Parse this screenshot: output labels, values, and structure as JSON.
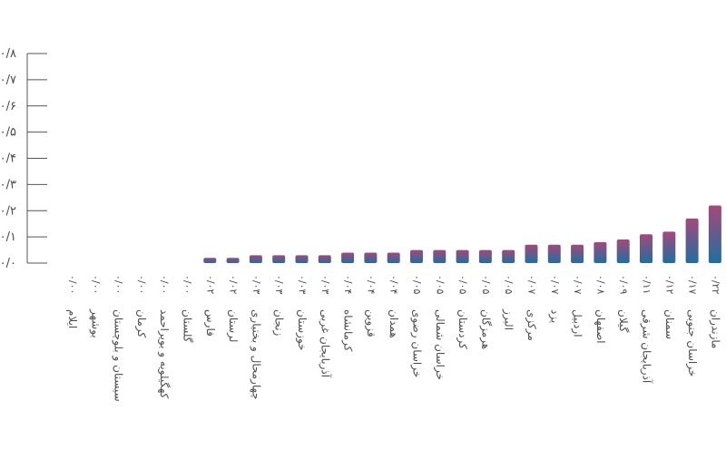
{
  "chart_data": {
    "type": "bar",
    "title": "",
    "xlabel": "",
    "ylabel": "",
    "ylim": [
      0,
      0.8
    ],
    "yticks": [
      "۰/۰",
      "۰/۱",
      "۰/۲",
      "۰/۳",
      "۰/۴",
      "۰/۵",
      "۰/۶",
      "۰/۷",
      "۰/۸"
    ],
    "grid": false,
    "colors": {
      "top": "#a4487a",
      "bottom": "#1f6fa0",
      "axis": "#555555",
      "text": "#4d4d4d"
    },
    "categories": [
      "ایلام",
      "بوشهر",
      "سیستان و بلوچستان",
      "کرمان",
      "کهگیلویه و بویراحمد",
      "گلستان",
      "فارس",
      "لرستان",
      "چهارمحال و بختیاری",
      "زنجان",
      "خوزستان",
      "آذربایجان غربی",
      "کرمانشاه",
      "قزوین",
      "همدان",
      "خراسان رضوی",
      "خراسان شمالی",
      "کردستان",
      "هرمزگان",
      "البرز",
      "مرکزی",
      "یزد",
      "اردبیل",
      "اصفهان",
      "گیلان",
      "آذربایجان شرقی",
      "سمنان",
      "خراسان جنوبی",
      "مازندران"
    ],
    "values": [
      0.0,
      0.0,
      0.0,
      0.0,
      0.0,
      0.0,
      0.02,
      0.02,
      0.03,
      0.03,
      0.03,
      0.03,
      0.04,
      0.04,
      0.04,
      0.05,
      0.05,
      0.05,
      0.05,
      0.05,
      0.07,
      0.07,
      0.07,
      0.08,
      0.09,
      0.11,
      0.12,
      0.17,
      0.22
    ],
    "value_labels": [
      "۰/۰۰",
      "۰/۰۰",
      "۰/۰۰",
      "۰/۰۰",
      "۰/۰۰",
      "۰/۰۰",
      "۰/۰۲",
      "۰/۰۲",
      "۰/۰۳",
      "۰/۰۳",
      "۰/۰۳",
      "۰/۰۳",
      "۰/۰۴",
      "۰/۰۴",
      "۰/۰۴",
      "۰/۰۵",
      "۰/۰۵",
      "۰/۰۵",
      "۰/۰۵",
      "۰/۰۵",
      "۰/۰۷",
      "۰/۰۷",
      "۰/۰۷",
      "۰/۰۸",
      "۰/۰۹",
      "۰/۱۱",
      "۰/۱۲",
      "۰/۱۷",
      "۰/۲۲"
    ]
  }
}
